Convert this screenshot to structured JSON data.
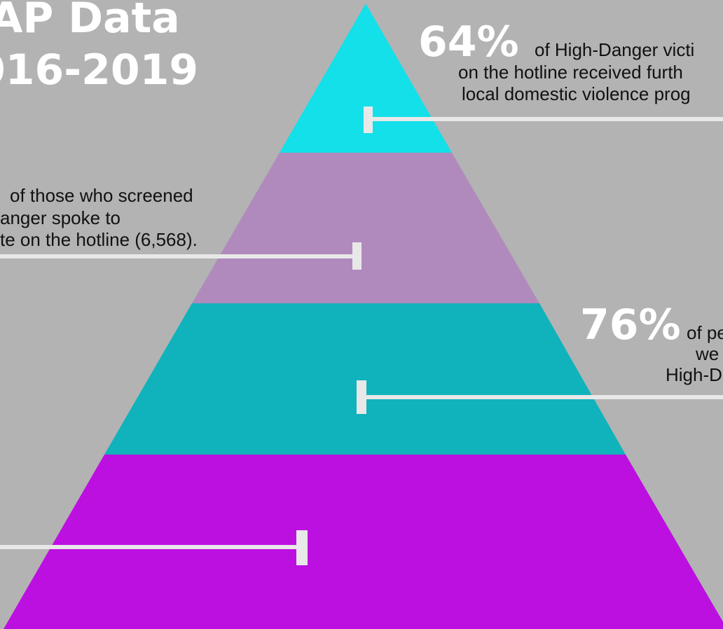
{
  "title": [
    "AP Data",
    "016-2019"
  ],
  "callouts": [
    {
      "stat": "64%",
      "lines": [
        "of High-Danger victi",
        "on the hotline received furth",
        "local domestic violence prog"
      ]
    },
    {
      "lines": [
        "of those who screened",
        "anger spoke to",
        "te on the hotline (6,568)."
      ]
    },
    {
      "stat": "76%",
      "lines": [
        "of pe",
        "we",
        "High-D"
      ]
    }
  ]
}
